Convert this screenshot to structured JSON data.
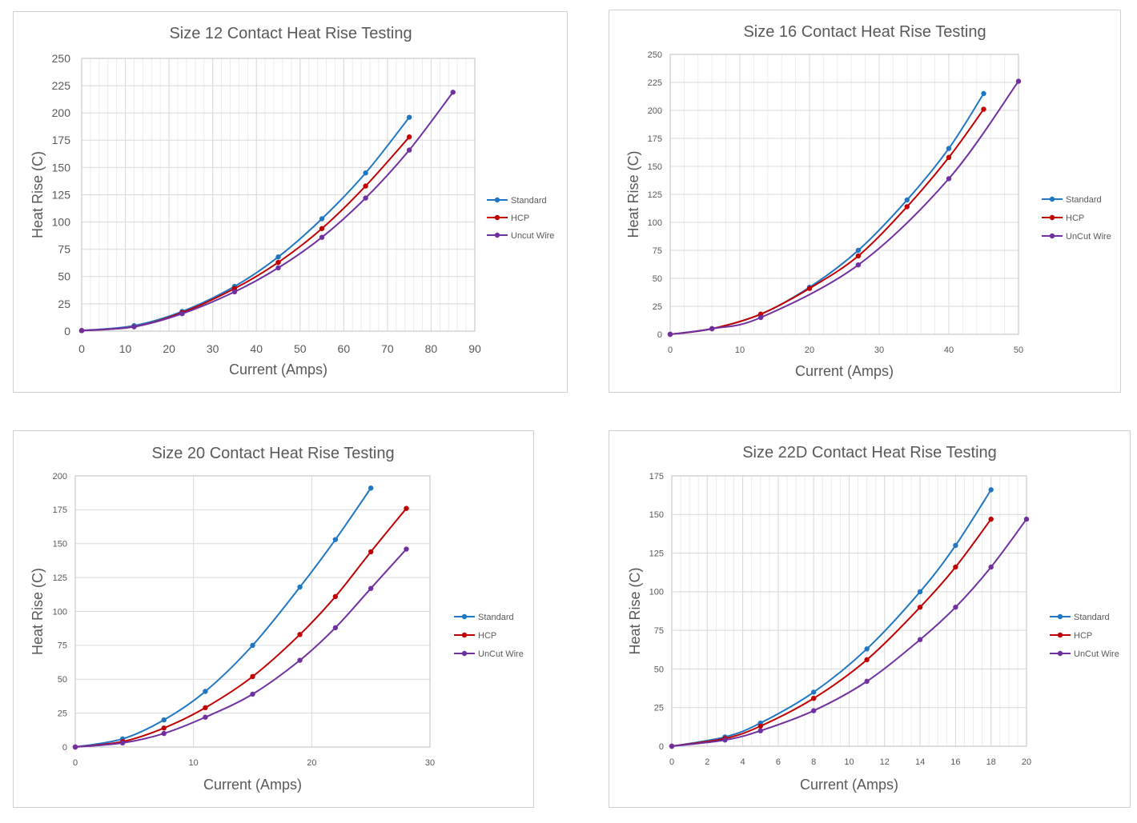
{
  "colors": {
    "standard": "#1f77c4",
    "hcp": "#c00000",
    "uncut": "#7030a0",
    "grid": "#d9d9d9",
    "axis": "#bfbfbf",
    "text": "#595959"
  },
  "chart_data": [
    {
      "type": "line",
      "title": "Size 12 Contact Heat Rise Testing",
      "xlabel": "Current (Amps)",
      "ylabel": "Heat Rise (C)",
      "xlim": [
        0,
        90
      ],
      "ylim": [
        0,
        250
      ],
      "x_ticks": [
        "0",
        "10",
        "20",
        "30",
        "40",
        "50",
        "60",
        "70",
        "80",
        "90"
      ],
      "y_ticks": [
        "0",
        "25",
        "50",
        "75",
        "100",
        "125",
        "150",
        "175",
        "200",
        "225",
        "250"
      ],
      "minor_x_step": 2,
      "legend": [
        "Standard",
        "HCP",
        "Uncut Wire"
      ],
      "series": [
        {
          "name": "Standard",
          "x": [
            0,
            12,
            23,
            35,
            45,
            55,
            65,
            75
          ],
          "y": [
            0.5,
            5,
            18,
            41,
            68,
            103,
            145,
            196
          ]
        },
        {
          "name": "HCP",
          "x": [
            0,
            12,
            23,
            35,
            45,
            55,
            65,
            75
          ],
          "y": [
            0.5,
            4,
            17,
            39,
            63,
            94,
            133,
            178
          ]
        },
        {
          "name": "Uncut Wire",
          "x": [
            0,
            12,
            23,
            35,
            45,
            55,
            65,
            75,
            85
          ],
          "y": [
            0.5,
            4,
            16,
            36,
            58,
            86,
            122,
            166,
            219
          ]
        }
      ]
    },
    {
      "type": "line",
      "title": "Size 16 Contact Heat Rise Testing",
      "xlabel": "Current (Amps)",
      "ylabel": "Heat Rise (C)",
      "xlim": [
        0,
        50
      ],
      "ylim": [
        0,
        250
      ],
      "x_ticks": [
        "0",
        "10",
        "20",
        "30",
        "40",
        "50"
      ],
      "y_ticks": [
        "0",
        "25",
        "50",
        "75",
        "100",
        "125",
        "150",
        "175",
        "200",
        "225",
        "250"
      ],
      "minor_x_step": 2,
      "legend": [
        "Standard",
        "HCP",
        "UnCut Wire"
      ],
      "series": [
        {
          "name": "Standard",
          "x": [
            0,
            6,
            13,
            20,
            27,
            34,
            40,
            45
          ],
          "y": [
            0,
            5,
            18,
            42,
            75,
            120,
            166,
            215
          ]
        },
        {
          "name": "HCP",
          "x": [
            0,
            6,
            13,
            20,
            27,
            34,
            40,
            45
          ],
          "y": [
            0,
            5,
            18,
            41,
            70,
            114,
            158,
            201
          ]
        },
        {
          "name": "UnCut Wire",
          "x": [
            0,
            6,
            13,
            27,
            40,
            50
          ],
          "y": [
            0,
            5,
            15,
            62,
            139,
            226
          ]
        }
      ]
    },
    {
      "type": "line",
      "title": "Size 20 Contact Heat Rise Testing",
      "xlabel": "Current (Amps)",
      "ylabel": "Heat Rise (C)",
      "xlim": [
        0,
        30
      ],
      "ylim": [
        0,
        200
      ],
      "x_ticks": [
        "0",
        "10",
        "20",
        "30"
      ],
      "y_ticks": [
        "0",
        "25",
        "50",
        "75",
        "100",
        "125",
        "150",
        "175",
        "200"
      ],
      "minor_x_step": 0,
      "legend": [
        "Standard",
        "HCP",
        "UnCut Wire"
      ],
      "series": [
        {
          "name": "Standard",
          "x": [
            0,
            4,
            7.5,
            11,
            15,
            19,
            22,
            25
          ],
          "y": [
            0,
            6,
            20,
            41,
            75,
            118,
            153,
            191
          ]
        },
        {
          "name": "HCP",
          "x": [
            0,
            4,
            7.5,
            11,
            15,
            19,
            22,
            25,
            28
          ],
          "y": [
            0,
            4,
            14,
            29,
            52,
            83,
            111,
            144,
            176
          ]
        },
        {
          "name": "UnCut Wire",
          "x": [
            0,
            4,
            7.5,
            11,
            15,
            19,
            22,
            25,
            28
          ],
          "y": [
            0,
            3,
            10,
            22,
            39,
            64,
            88,
            117,
            146
          ]
        }
      ]
    },
    {
      "type": "line",
      "title": "Size 22D Contact Heat Rise Testing",
      "xlabel": "Current (Amps)",
      "ylabel": "Heat Rise (C)",
      "xlim": [
        0,
        20
      ],
      "ylim": [
        0,
        175
      ],
      "x_ticks": [
        "0",
        "2",
        "4",
        "6",
        "8",
        "10",
        "12",
        "14",
        "16",
        "18",
        "20"
      ],
      "y_ticks": [
        "0",
        "25",
        "50",
        "75",
        "100",
        "125",
        "150",
        "175"
      ],
      "minor_x_step": 0.5,
      "legend": [
        "Standard",
        "HCP",
        "UnCut Wire"
      ],
      "series": [
        {
          "name": "Standard",
          "x": [
            0,
            3,
            5,
            8,
            11,
            14,
            16,
            18
          ],
          "y": [
            0,
            6,
            15,
            35,
            63,
            100,
            130,
            166
          ]
        },
        {
          "name": "HCP",
          "x": [
            0,
            3,
            5,
            8,
            11,
            14,
            16,
            18
          ],
          "y": [
            0,
            5,
            13,
            31,
            56,
            90,
            116,
            147
          ]
        },
        {
          "name": "UnCut Wire",
          "x": [
            0,
            3,
            5,
            8,
            11,
            14,
            16,
            18,
            20
          ],
          "y": [
            0,
            4,
            10,
            23,
            42,
            69,
            90,
            116,
            147
          ]
        }
      ]
    }
  ]
}
